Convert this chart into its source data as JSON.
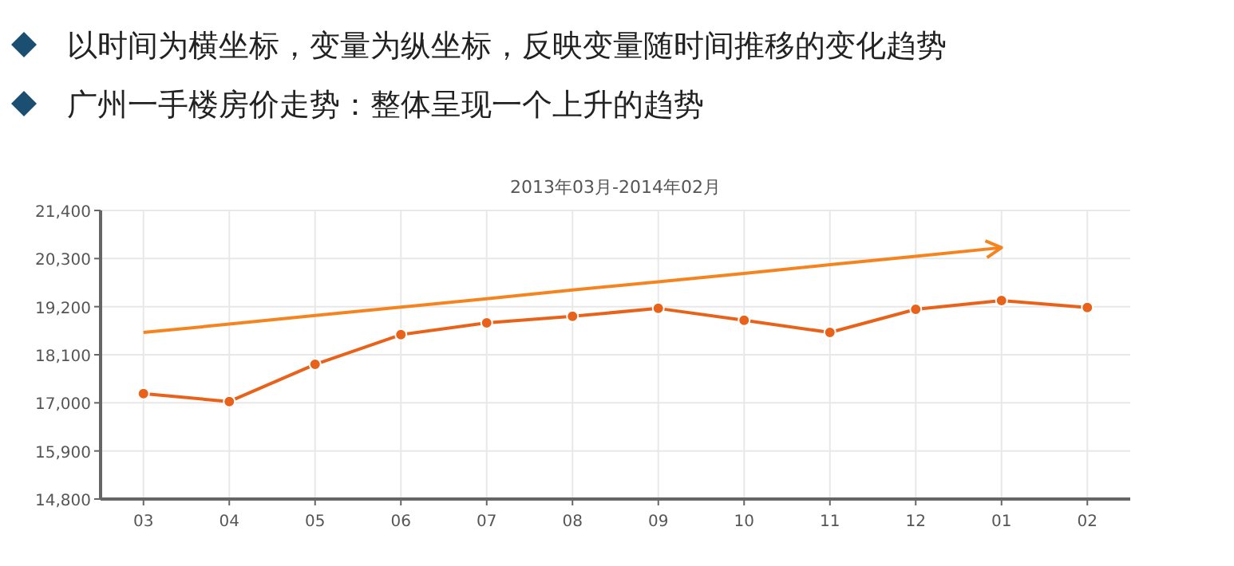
{
  "chart_data": {
    "type": "line",
    "title": "2013年03月-2014年02月",
    "annotations": [
      "以时间为横坐标，变量为纵坐标，反映变量随时间推移的变化趋势",
      "广州一手楼房价走势：整体呈现一个上升的趋势"
    ],
    "categories": [
      "03",
      "04",
      "05",
      "06",
      "07",
      "08",
      "09",
      "10",
      "11",
      "12",
      "01",
      "02"
    ],
    "series": [
      {
        "color": "#e8621a",
        "values": [
          17210,
          17030,
          17880,
          18560,
          18830,
          18980,
          19160,
          18890,
          18610,
          19140,
          19340,
          19180
        ],
        "marker": "circle"
      },
      {
        "type": "line",
        "color": "#f5841f",
        "values": [
          18610,
          18800,
          19000,
          19190,
          19380,
          19580,
          19770,
          19960,
          20160,
          20350,
          20550,
          null
        ],
        "marker": "none"
      }
    ],
    "ylim": [
      14800,
      21400
    ],
    "yticks": [
      {
        "value": 14800,
        "label": "14,800"
      },
      {
        "value": 15900,
        "label": "15,900"
      },
      {
        "value": 17000,
        "label": "17,000"
      },
      {
        "value": 18100,
        "label": "18,100"
      },
      {
        "value": 19200,
        "label": "19,200"
      },
      {
        "value": 20300,
        "label": "20,300"
      },
      {
        "value": 21400,
        "label": "21,400"
      }
    ],
    "grid": true,
    "line_style": "solid"
  }
}
